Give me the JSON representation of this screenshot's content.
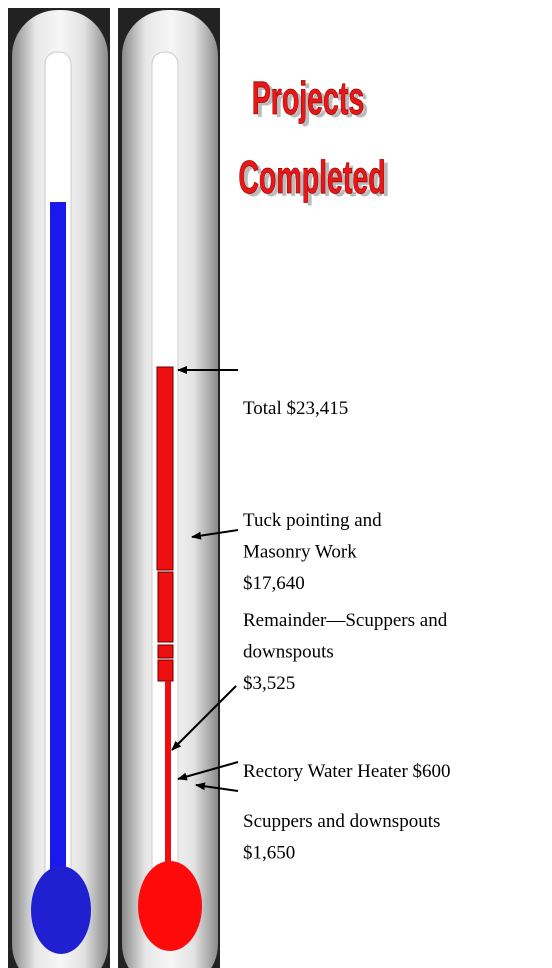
{
  "title": {
    "line1": "Projects",
    "line2": "Completed"
  },
  "annotations": [
    {
      "lines": [
        "Total $23,415"
      ]
    },
    {
      "lines": [
        "Tuck pointing and",
        "Masonry  Work",
        "$17,640"
      ]
    },
    {
      "lines": [
        "Remainder—Scuppers and",
        "downspouts",
        "$3,525"
      ]
    },
    {
      "lines": [
        "Rectory Water Heater $600"
      ]
    },
    {
      "lines": [
        "Scuppers and downspouts",
        "$1,650"
      ]
    }
  ]
}
